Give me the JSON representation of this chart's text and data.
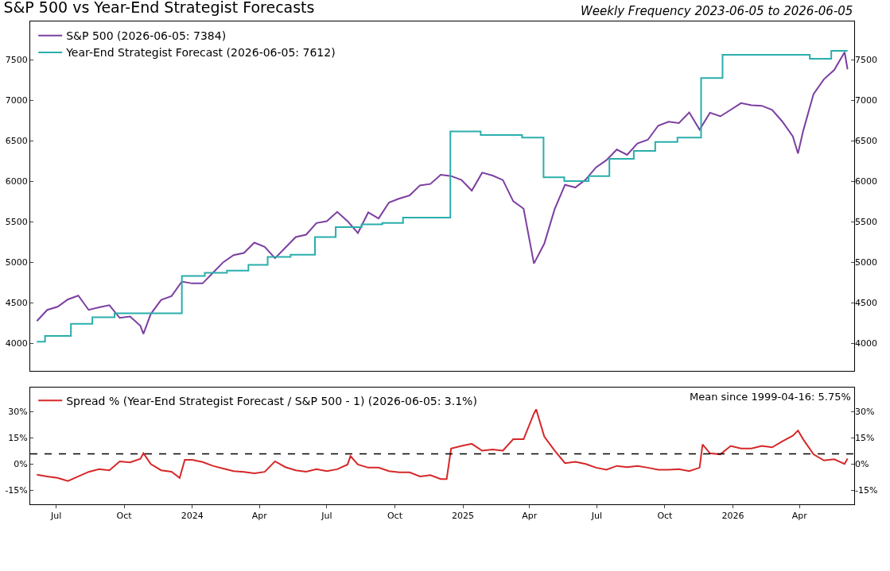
{
  "chart_data": [
    {
      "type": "line",
      "title": "S&P 500 vs Year-End Strategist Forecasts",
      "annotations": [
        "Weekly Frequency 2023-06-05 to 2026-06-05"
      ],
      "legend": "top left",
      "tick_labels": "y",
      "xlim": [
        "2023-05-27",
        "2026-06-14"
      ],
      "ylim": [
        3660,
        7975
      ],
      "yticks": [
        4000,
        4500,
        5000,
        5500,
        6000,
        6500,
        7000,
        7500
      ],
      "y2lim": [
        3660,
        7975
      ],
      "y2ticks": [
        4000,
        4500,
        5000,
        5500,
        6000,
        6500,
        7000,
        7500
      ],
      "series": [
        {
          "name": "S&P 500 (2026-06-05: 7384)",
          "color": "#7b3fa0",
          "x": [
            "2023-06-05",
            "2023-06-19",
            "2023-07-03",
            "2023-07-17",
            "2023-07-31",
            "2023-08-14",
            "2023-08-28",
            "2023-09-11",
            "2023-09-25",
            "2023-10-09",
            "2023-10-23",
            "2023-10-27",
            "2023-11-06",
            "2023-11-20",
            "2023-12-04",
            "2023-12-18",
            "2024-01-01",
            "2024-01-15",
            "2024-01-29",
            "2024-02-12",
            "2024-02-26",
            "2024-03-11",
            "2024-03-25",
            "2024-04-08",
            "2024-04-22",
            "2024-05-06",
            "2024-05-20",
            "2024-06-03",
            "2024-06-17",
            "2024-07-01",
            "2024-07-15",
            "2024-07-29",
            "2024-08-12",
            "2024-08-26",
            "2024-09-09",
            "2024-09-23",
            "2024-10-07",
            "2024-10-21",
            "2024-11-04",
            "2024-11-18",
            "2024-12-02",
            "2024-12-16",
            "2024-12-30",
            "2025-01-13",
            "2025-01-27",
            "2025-02-10",
            "2025-02-24",
            "2025-03-10",
            "2025-03-24",
            "2025-04-07",
            "2025-04-21",
            "2025-05-05",
            "2025-05-19",
            "2025-06-02",
            "2025-06-16",
            "2025-06-30",
            "2025-07-14",
            "2025-07-28",
            "2025-08-11",
            "2025-08-25",
            "2025-09-08",
            "2025-09-22",
            "2025-10-06",
            "2025-10-20",
            "2025-11-03",
            "2025-11-17",
            "2025-12-01",
            "2025-12-15",
            "2025-12-29",
            "2026-01-12",
            "2026-01-26",
            "2026-02-09",
            "2026-02-23",
            "2026-03-09",
            "2026-03-23",
            "2026-03-30",
            "2026-04-06",
            "2026-04-20",
            "2026-05-04",
            "2026-05-18",
            "2026-06-01",
            "2026-06-05"
          ],
          "values": [
            4275,
            4413,
            4452,
            4543,
            4589,
            4413,
            4445,
            4471,
            4314,
            4331,
            4216,
            4118,
            4363,
            4537,
            4583,
            4763,
            4740,
            4740,
            4871,
            5002,
            5090,
            5116,
            5244,
            5192,
            5051,
            5182,
            5313,
            5342,
            5486,
            5509,
            5624,
            5509,
            5362,
            5617,
            5542,
            5739,
            5788,
            5827,
            5951,
            5968,
            6082,
            6066,
            6017,
            5886,
            6108,
            6072,
            6017,
            5755,
            5663,
            4985,
            5231,
            5657,
            5958,
            5925,
            6023,
            6174,
            6262,
            6393,
            6328,
            6469,
            6514,
            6688,
            6737,
            6721,
            6852,
            6639,
            6848,
            6803,
            6884,
            6966,
            6940,
            6934,
            6884,
            6737,
            6557,
            6344,
            6623,
            7078,
            7261,
            7376,
            7595,
            7384
          ]
        },
        {
          "name": "Year-End Strategist Forecast (2026-06-05: 7612)",
          "color": "#2aaeac",
          "type": "step",
          "x": [
            "2023-06-05",
            "2023-06-16",
            "2023-07-21",
            "2023-08-19",
            "2023-09-18",
            "2023-12-18",
            "2024-01-18",
            "2024-02-17",
            "2024-03-17",
            "2024-04-12",
            "2024-05-13",
            "2024-06-15",
            "2024-07-13",
            "2024-08-17",
            "2024-09-14",
            "2024-10-12",
            "2024-12-15",
            "2025-01-25",
            "2025-03-22",
            "2025-04-20",
            "2025-05-18",
            "2025-06-20",
            "2025-07-18",
            "2025-08-20",
            "2025-09-18",
            "2025-10-18",
            "2025-11-19",
            "2025-12-18",
            "2026-04-15",
            "2026-05-14",
            "2026-06-05"
          ],
          "values": [
            4020,
            4092,
            4242,
            4321,
            4370,
            4832,
            4871,
            4897,
            4969,
            5067,
            5094,
            5313,
            5434,
            5470,
            5486,
            5552,
            6616,
            6573,
            6541,
            6050,
            6004,
            6066,
            6279,
            6377,
            6488,
            6541,
            7277,
            7562,
            7513,
            7612,
            7612
          ]
        }
      ]
    },
    {
      "type": "line",
      "legend": "top left",
      "xlim": [
        "2023-05-27",
        "2026-06-14"
      ],
      "xticks": [
        {
          "value": "2023-07-01",
          "label": "Jul"
        },
        {
          "value": "2023-10-01",
          "label": "Oct"
        },
        {
          "value": "2024-01-01",
          "label": "2024"
        },
        {
          "value": "2024-04-01",
          "label": "Apr"
        },
        {
          "value": "2024-07-01",
          "label": "Jul"
        },
        {
          "value": "2024-10-01",
          "label": "Oct"
        },
        {
          "value": "2025-01-01",
          "label": "2025"
        },
        {
          "value": "2025-04-01",
          "label": "Apr"
        },
        {
          "value": "2025-07-01",
          "label": "Jul"
        },
        {
          "value": "2025-10-01",
          "label": "Oct"
        },
        {
          "value": "2026-01-01",
          "label": "2026"
        },
        {
          "value": "2026-04-01",
          "label": "Apr"
        }
      ],
      "ylim": [
        -23,
        43.6
      ],
      "yticks": [
        {
          "value": 30,
          "label": "30%"
        },
        {
          "value": 15,
          "label": "15%"
        },
        {
          "value": 0,
          "label": "0%"
        },
        {
          "value": -15,
          "label": "-15%"
        }
      ],
      "y2lim": [
        -23,
        43.6
      ],
      "y2ticks": [
        {
          "value": 30,
          "label": "30%"
        },
        {
          "value": 15,
          "label": "15%"
        },
        {
          "value": 0,
          "label": "0%"
        },
        {
          "value": -15,
          "label": "-15%"
        }
      ],
      "ref_lines": [
        {
          "axis": "y",
          "value": 5.75,
          "label": "Mean since 1999-04-16: 5.75%",
          "color": "#000000",
          "line_style": "dashed"
        }
      ],
      "series": [
        {
          "name": "Spread % (Year-End Strategist Forecast / S&P 500 - 1) (2026-06-05: 3.1%)",
          "color": "#d62728",
          "x": [
            "2023-06-05",
            "2023-06-19",
            "2023-07-03",
            "2023-07-17",
            "2023-07-31",
            "2023-08-14",
            "2023-08-28",
            "2023-09-11",
            "2023-09-25",
            "2023-10-09",
            "2023-10-23",
            "2023-10-27",
            "2023-11-06",
            "2023-11-20",
            "2023-12-04",
            "2023-12-15",
            "2023-12-22",
            "2024-01-01",
            "2024-01-15",
            "2024-01-29",
            "2024-02-12",
            "2024-02-26",
            "2024-03-11",
            "2024-03-25",
            "2024-04-08",
            "2024-04-22",
            "2024-05-06",
            "2024-05-20",
            "2024-06-03",
            "2024-06-17",
            "2024-07-01",
            "2024-07-15",
            "2024-07-29",
            "2024-08-02",
            "2024-08-12",
            "2024-08-26",
            "2024-09-09",
            "2024-09-23",
            "2024-10-07",
            "2024-10-21",
            "2024-11-04",
            "2024-11-18",
            "2024-12-02",
            "2024-12-10",
            "2024-12-16",
            "2024-12-30",
            "2025-01-13",
            "2025-01-27",
            "2025-02-10",
            "2025-02-24",
            "2025-03-10",
            "2025-03-24",
            "2025-04-07",
            "2025-04-10",
            "2025-04-21",
            "2025-05-05",
            "2025-05-19",
            "2025-06-02",
            "2025-06-16",
            "2025-06-30",
            "2025-07-14",
            "2025-07-28",
            "2025-08-11",
            "2025-08-25",
            "2025-09-08",
            "2025-09-22",
            "2025-10-06",
            "2025-10-20",
            "2025-11-03",
            "2025-11-17",
            "2025-11-21",
            "2025-12-01",
            "2025-12-15",
            "2025-12-29",
            "2026-01-12",
            "2026-01-26",
            "2026-02-09",
            "2026-02-23",
            "2026-03-09",
            "2026-03-23",
            "2026-03-30",
            "2026-04-06",
            "2026-04-20",
            "2026-05-04",
            "2026-05-18",
            "2026-06-01",
            "2026-06-05"
          ],
          "values": [
            -6.1,
            -7.1,
            -7.9,
            -9.7,
            -7.1,
            -4.5,
            -3,
            -3.6,
            1.5,
            0.9,
            3,
            6.1,
            0,
            -3.6,
            -4.4,
            -8,
            2.4,
            2.4,
            1.1,
            -1.1,
            -2.6,
            -4.1,
            -4.5,
            -5.3,
            -4.5,
            1.5,
            -1.8,
            -3.6,
            -4.4,
            -3,
            -4.1,
            -3,
            -0.3,
            4.5,
            -0.3,
            -2.1,
            -2.1,
            -4.1,
            -4.8,
            -4.8,
            -7.1,
            -6.4,
            -8.6,
            -8.6,
            8.8,
            10.3,
            11.5,
            7.6,
            8.3,
            7.6,
            14.1,
            14.1,
            28.8,
            31.2,
            15.6,
            7.6,
            0.5,
            1.2,
            0,
            -2.1,
            -3.3,
            -1.1,
            -1.8,
            -1.1,
            -2.1,
            -3.3,
            -3.3,
            -3,
            -4.1,
            -2.1,
            11.1,
            6.1,
            5.5,
            10.3,
            8.8,
            8.8,
            10.3,
            9.5,
            13,
            16.1,
            19.1,
            14.1,
            5.5,
            2,
            2.7,
            0,
            3.1
          ]
        }
      ]
    }
  ]
}
